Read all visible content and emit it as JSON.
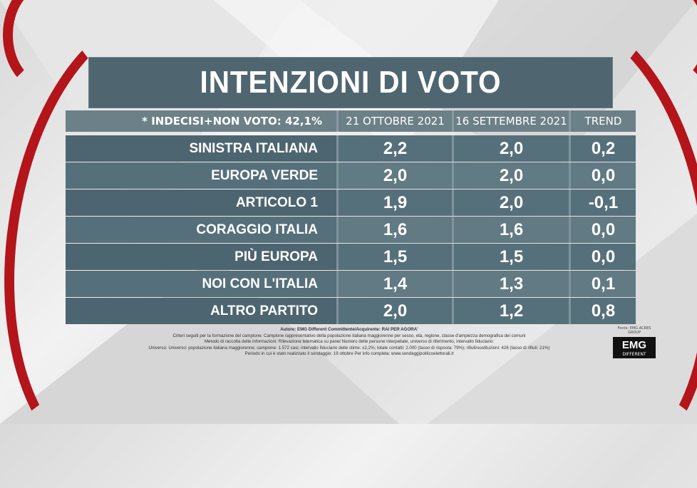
{
  "title": "INTENZIONI DI VOTO",
  "header": {
    "note": "* INDECISI+NON VOTO: 42,1%",
    "col_current": "21 OTTOBRE 2021",
    "col_previous": "16 SETTEMBRE 2021",
    "col_trend": "TREND"
  },
  "chart_data": {
    "type": "table",
    "columns": [
      "21 OTTOBRE 2021",
      "16 SETTEMBRE 2021",
      "TREND"
    ],
    "rows": [
      {
        "party": "SINISTRA ITALIANA",
        "current": "2,2",
        "previous": "2,0",
        "trend": "0,2"
      },
      {
        "party": "EUROPA VERDE",
        "current": "2,0",
        "previous": "2,0",
        "trend": "0,0"
      },
      {
        "party": "ARTICOLO 1",
        "current": "1,9",
        "previous": "2,0",
        "trend": "-0,1"
      },
      {
        "party": "CORAGGIO ITALIA",
        "current": "1,6",
        "previous": "1,6",
        "trend": "0,0"
      },
      {
        "party": "PIÙ EUROPA",
        "current": "1,5",
        "previous": "1,5",
        "trend": "0,0"
      },
      {
        "party": "NOI CON  L'ITALIA",
        "current": "1,4",
        "previous": "1,3",
        "trend": "0,1"
      },
      {
        "party": "ALTRO PARTITO",
        "current": "2,0",
        "previous": "1,2",
        "trend": "0,8"
      }
    ]
  },
  "footnote": {
    "line1": "Autore: EMG Different Committente/Acquirente: RAI PER AGORA'",
    "line2": "Criteri seguiti per la formazione del campione: Campione rappresentativo della popolazione italiana maggiorenne per sesso, età, regione, classe d'ampiezza demografica dei comuni",
    "line3": "Metodo di raccolta delle informazioni: Rilevazione telematica su panel Numero delle persone interpellate, universo di riferimento, intervallo fiduciario:",
    "line4": "Universo: Universo: popolazione italiana maggiorenne; campione: 1.572 casi; intervallo fiduciario delle stime: ±2,2%; totale contatti: 2.000 (tasso di risposta: 79%); rifiuti/sostituzioni: 428 (tasso di rifiuti: 21%)",
    "line5": "Periodo in cui è stato realizzato il sondaggio: 19 ottobre  Per info completa: www.sondaggipoliticoelettorali.it"
  },
  "logo": {
    "small": "Fonte: EMG ACRES GROUP",
    "name": "EMG",
    "sub": "DIFFERENT"
  },
  "colors": {
    "panel": "#4f6670",
    "header": "#6c8088",
    "accent_red": "#b3151a"
  }
}
